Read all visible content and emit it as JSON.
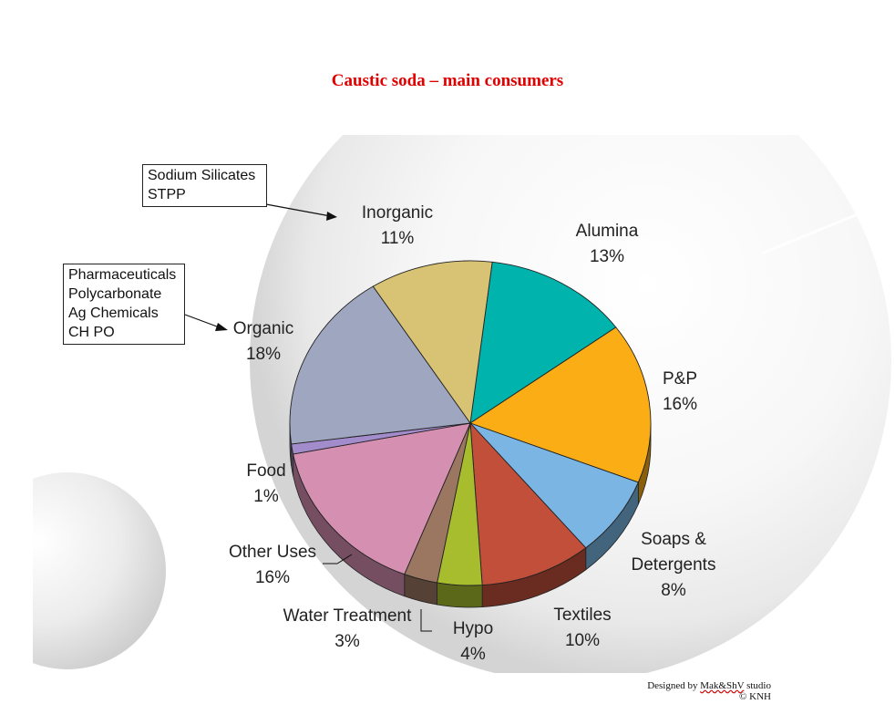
{
  "chart_data": {
    "type": "pie",
    "title": "Caustic soda – main consumers",
    "slices": [
      {
        "label": "Alumina",
        "value": 13,
        "value_label": "13%",
        "color": "#00b3ad"
      },
      {
        "label": "P&P",
        "value": 16,
        "value_label": "16%",
        "color": "#fbad16"
      },
      {
        "label": "Soaps & Detergents",
        "value": 8,
        "value_label": "8%",
        "color": "#7ab5e3"
      },
      {
        "label": "Textiles",
        "value": 10,
        "value_label": "10%",
        "color": "#c14f3a"
      },
      {
        "label": "Hypo",
        "value": 4,
        "value_label": "4%",
        "color": "#a8bd2e"
      },
      {
        "label": "Water Treatment",
        "value": 3,
        "value_label": "3%",
        "color": "#9b7660"
      },
      {
        "label": "Other Uses",
        "value": 16,
        "value_label": "16%",
        "color": "#d590b1"
      },
      {
        "label": "Food",
        "value": 1,
        "value_label": "1%",
        "color": "#a38ccc"
      },
      {
        "label": "Organic",
        "value": 18,
        "value_label": "18%",
        "color": "#9fa7c0"
      },
      {
        "label": "Inorganic",
        "value": 11,
        "value_label": "11%",
        "color": "#d8c274"
      }
    ],
    "callouts": {
      "inorganic": [
        "Sodium Silicates",
        "STPP"
      ],
      "organic": [
        "Pharmaceuticals",
        "Polycarbonate",
        "Ag Chemicals",
        "CH PO"
      ]
    }
  },
  "labels": {
    "alumina": {
      "line1": "Alumina",
      "line2": "13%"
    },
    "pp": {
      "line1": "P&P",
      "line2": "16%"
    },
    "soaps": {
      "line1": "Soaps &",
      "line2": "Detergents",
      "line3": "8%"
    },
    "textiles": {
      "line1": "Textiles",
      "line2": "10%"
    },
    "hypo": {
      "line1": "Hypo",
      "line2": "4%"
    },
    "water": {
      "line1": "Water Treatment",
      "line2": "3%"
    },
    "other": {
      "line1": "Other Uses",
      "line2": "16%"
    },
    "food": {
      "line1": "Food",
      "line2": "1%"
    },
    "organic": {
      "line1": "Organic",
      "line2": "18%"
    },
    "inorganic": {
      "line1": "Inorganic",
      "line2": "11%"
    }
  },
  "credit": {
    "prefix": "Designed by ",
    "studio": "Mak&ShV",
    "suffix": " studio",
    "copyright": "© KNH"
  }
}
